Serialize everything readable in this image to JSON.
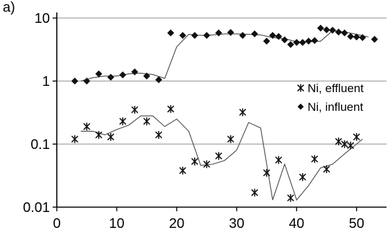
{
  "panel_label": "a)",
  "colors": {
    "grid": "#a0a0a0",
    "axis": "#000000",
    "marker": "#111111",
    "trend": "#444444"
  },
  "chart_data": {
    "type": "scatter",
    "title": "",
    "xlabel": "",
    "ylabel": "",
    "xlim": [
      0,
      55
    ],
    "ylim": [
      0.01,
      10
    ],
    "yscale": "log",
    "xticks": [
      0,
      10,
      20,
      30,
      40,
      50
    ],
    "yticks": [
      0.01,
      0.1,
      1,
      10
    ],
    "ytick_labels": [
      "0.01",
      "0.1",
      "1",
      "10"
    ],
    "grid": "horizontal",
    "legend_position": "right",
    "series": [
      {
        "name": "Ni, effluent",
        "marker": "asterisk",
        "x": [
          3,
          5,
          7,
          9,
          11,
          13,
          15,
          17,
          19,
          21,
          23,
          25,
          27,
          29,
          31,
          33,
          35,
          37,
          39,
          41,
          43,
          45,
          47,
          48,
          49,
          50
        ],
        "y": [
          0.12,
          0.19,
          0.14,
          0.13,
          0.23,
          0.35,
          0.23,
          0.14,
          0.36,
          0.038,
          0.053,
          0.048,
          0.065,
          0.12,
          0.32,
          0.017,
          0.035,
          0.056,
          0.014,
          0.03,
          0.058,
          0.04,
          0.11,
          0.1,
          0.095,
          0.13
        ]
      },
      {
        "name": "Ni, influent",
        "marker": "diamond",
        "x": [
          3,
          5,
          7,
          9,
          11,
          13,
          15,
          17,
          19,
          21,
          23,
          25,
          27,
          29,
          31,
          33,
          35,
          36,
          37,
          38,
          39,
          40,
          41,
          42,
          43,
          44,
          45,
          46,
          47,
          48,
          49,
          50,
          51,
          53
        ],
        "y": [
          1.0,
          1.0,
          1.3,
          1.15,
          1.25,
          1.4,
          1.2,
          1.05,
          5.8,
          5.3,
          5.3,
          5.3,
          5.8,
          5.9,
          5.3,
          5.6,
          4.3,
          5.3,
          5.1,
          4.5,
          3.8,
          4.1,
          4.1,
          4.3,
          4.4,
          6.9,
          6.5,
          6.4,
          6.0,
          5.8,
          5.1,
          5.0,
          4.9,
          4.6
        ]
      }
    ],
    "trendlines": [
      {
        "series": "Ni, effluent",
        "x": [
          4,
          6,
          8,
          10,
          12,
          14,
          16,
          18,
          20,
          22,
          24,
          26,
          28,
          30,
          32,
          34,
          36,
          38,
          40,
          42,
          44,
          46,
          48,
          50,
          51
        ],
        "y": [
          0.16,
          0.16,
          0.14,
          0.17,
          0.2,
          0.28,
          0.28,
          0.19,
          0.25,
          0.16,
          0.046,
          0.048,
          0.055,
          0.08,
          0.22,
          0.18,
          0.013,
          0.048,
          0.013,
          0.022,
          0.042,
          0.048,
          0.07,
          0.1,
          0.12
        ]
      },
      {
        "series": "Ni, influent",
        "x": [
          4,
          6,
          8,
          10,
          12,
          14,
          16,
          18,
          20,
          22,
          24,
          26,
          28,
          30,
          32,
          34,
          36,
          38,
          40,
          42,
          44,
          46,
          48,
          50,
          52
        ],
        "y": [
          1.0,
          1.13,
          1.2,
          1.2,
          1.3,
          1.33,
          1.27,
          1.1,
          3.5,
          5.5,
          5.3,
          5.4,
          5.6,
          5.6,
          5.5,
          5.4,
          4.9,
          4.7,
          4.2,
          4.2,
          4.3,
          6.3,
          6.0,
          5.5,
          5.0
        ]
      }
    ]
  }
}
